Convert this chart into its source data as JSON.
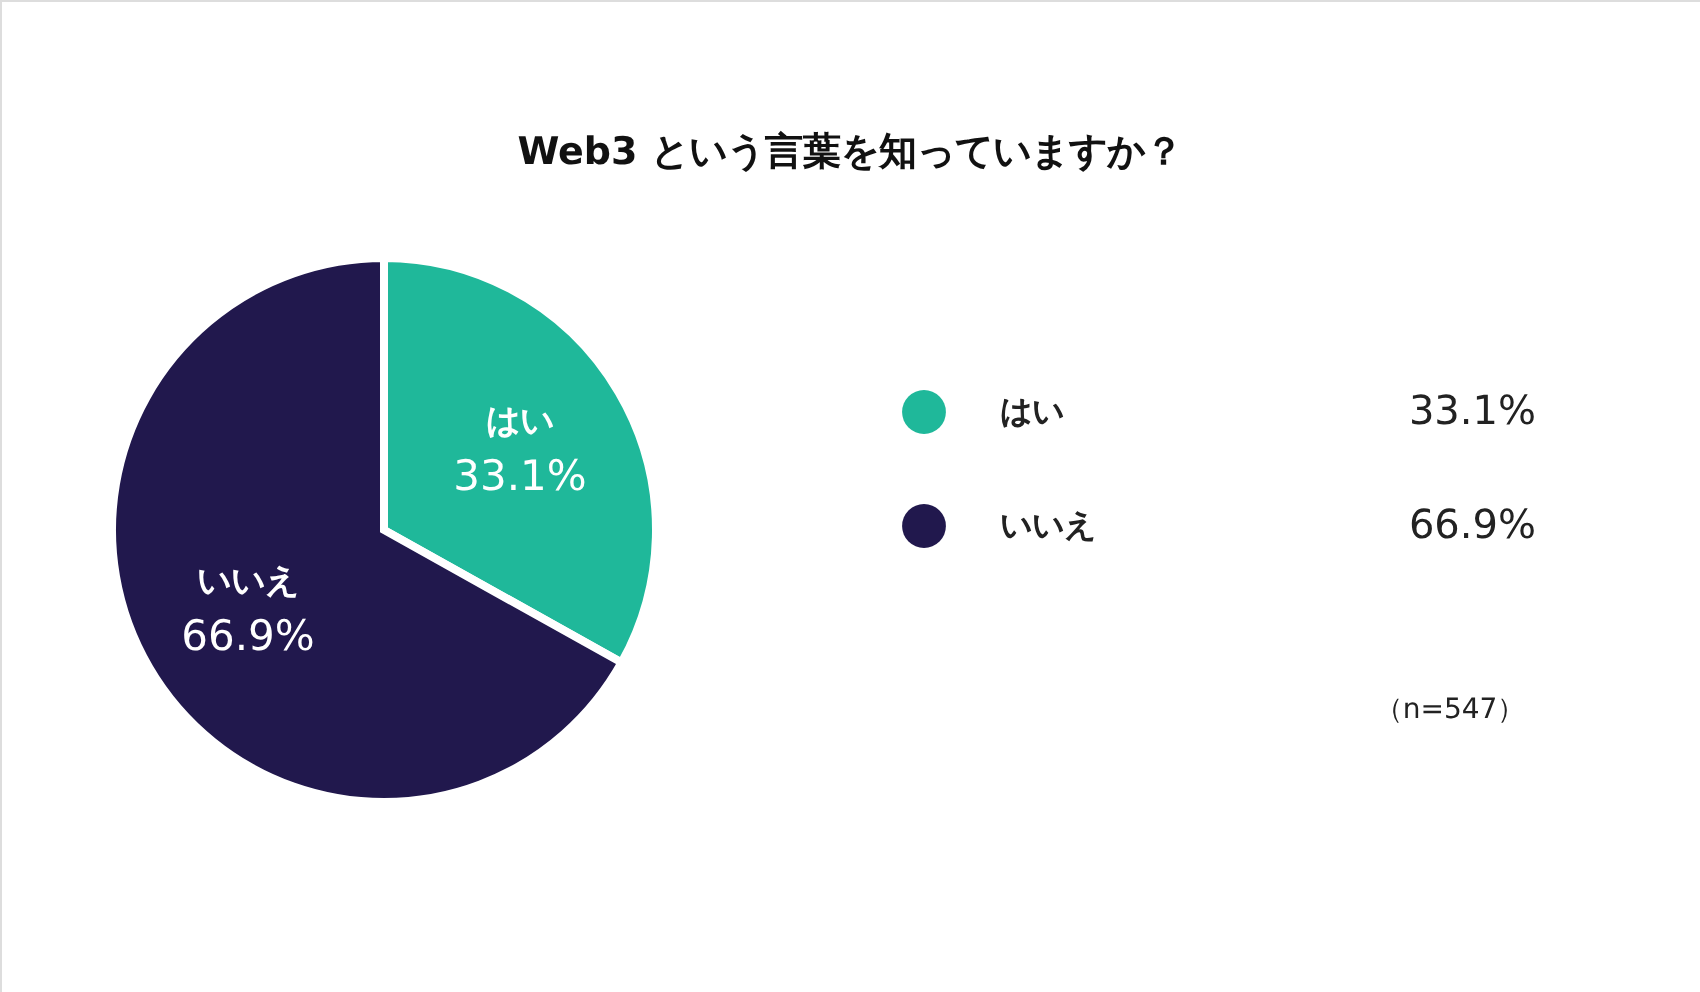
{
  "chart_data": {
    "type": "pie",
    "title": "Web3 という言葉を知っていますか？",
    "categories": [
      "はい",
      "いいえ"
    ],
    "values": [
      33.1,
      66.9
    ],
    "value_labels": [
      "33.1%",
      "66.9%"
    ],
    "colors": [
      "#1fb89a",
      "#21184d"
    ],
    "legend": "right",
    "annotations": [
      "（n=547）"
    ]
  }
}
